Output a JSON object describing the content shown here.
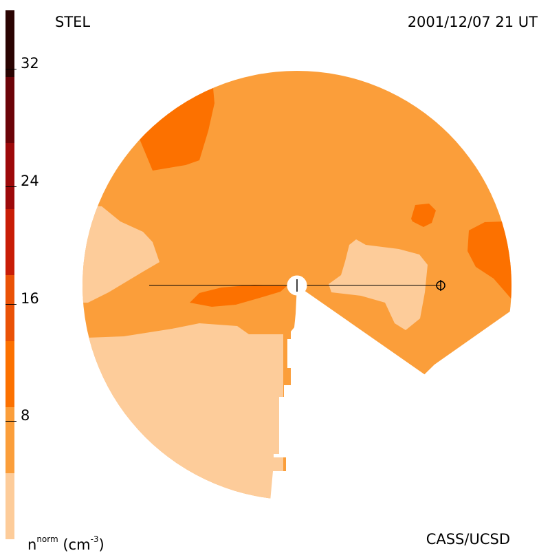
{
  "header": {
    "left_label": "STEL",
    "right_label": "2001/12/07 21 UT"
  },
  "footer": {
    "credit": "CASS/UCSD"
  },
  "colorbar": {
    "quantity_base": "n",
    "quantity_superscript": "norm",
    "units_prefix": "(cm",
    "units_exponent": "-3",
    "units_suffix": ")",
    "min": 0,
    "max": 36,
    "step": 4.5,
    "ticks": [
      "8",
      "16",
      "24",
      "32"
    ],
    "tick_values": [
      8,
      16,
      24,
      32
    ],
    "colors": [
      "#fdcc9a",
      "#fb9e3a",
      "#fc7100",
      "#ea5206",
      "#c81d06",
      "#9d090a",
      "#6c0408",
      "#2a0402"
    ]
  },
  "chart_data": {
    "type": "heatmap",
    "title": "",
    "xlabel": "",
    "ylabel": "",
    "colorbar_label": "n^norm (cm^-3)",
    "colorbar_range": [
      0,
      36
    ],
    "colorbar_ticks": [
      8,
      16,
      24,
      32
    ],
    "left_label": "STEL",
    "right_label": "2001/12/07 21 UT",
    "markers": [
      "Sun (center)",
      "Earth"
    ],
    "levels": [
      {
        "range": [
          0,
          4.5
        ],
        "color": "#fdcc9a",
        "regions": "lower-left sector, left edge, near-Earth patch right of Sun"
      },
      {
        "range": [
          4.5,
          9
        ],
        "color": "#fb9e3a",
        "regions": "bulk of disk"
      },
      {
        "range": [
          9,
          13.5
        ],
        "color": "#fc7100",
        "regions": "upper-left patch, small upper-right patch, right edge patch, patch left of Sun"
      }
    ],
    "grid": false,
    "legend": "left vertical colorbar"
  },
  "colors": {
    "background": "#ffffff",
    "sun": "#ffffff",
    "line": "#000000"
  }
}
